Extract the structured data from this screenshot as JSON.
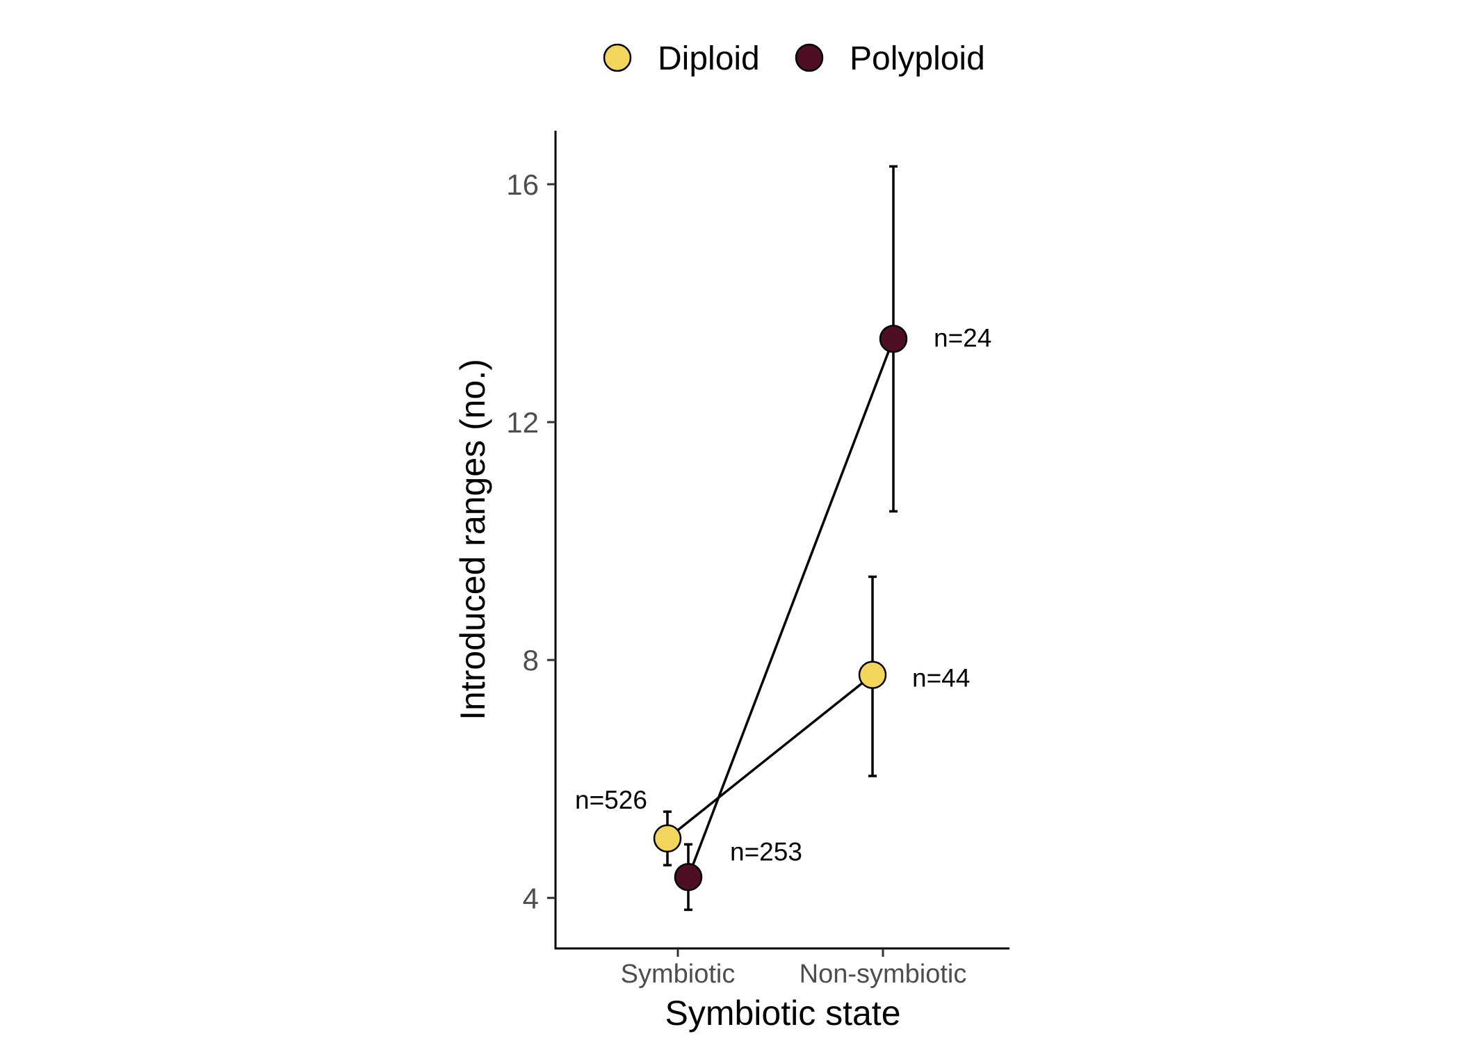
{
  "chart_data": {
    "type": "line",
    "title": "",
    "xlabel": "Symbiotic state",
    "ylabel": "Introduced ranges (no.)",
    "categories": [
      "Symbiotic",
      "Non-symbiotic"
    ],
    "ylim": [
      3.15,
      16.9
    ],
    "yticks": [
      4,
      8,
      12,
      16
    ],
    "grid": false,
    "legend": {
      "position": "top",
      "entries": [
        "Diploid",
        "Polyploid"
      ]
    },
    "series": [
      {
        "name": "Diploid",
        "color": "#F3D55B",
        "values": [
          5.0,
          7.75
        ],
        "error_low": [
          4.55,
          6.05
        ],
        "error_high": [
          5.45,
          9.4
        ],
        "n_labels": [
          "n=526",
          "n=44"
        ]
      },
      {
        "name": "Polyploid",
        "color": "#4E0F24",
        "values": [
          4.35,
          13.4
        ],
        "error_low": [
          3.8,
          10.5
        ],
        "error_high": [
          4.9,
          16.3
        ],
        "n_labels": [
          "n=253",
          "n=24"
        ]
      }
    ]
  }
}
